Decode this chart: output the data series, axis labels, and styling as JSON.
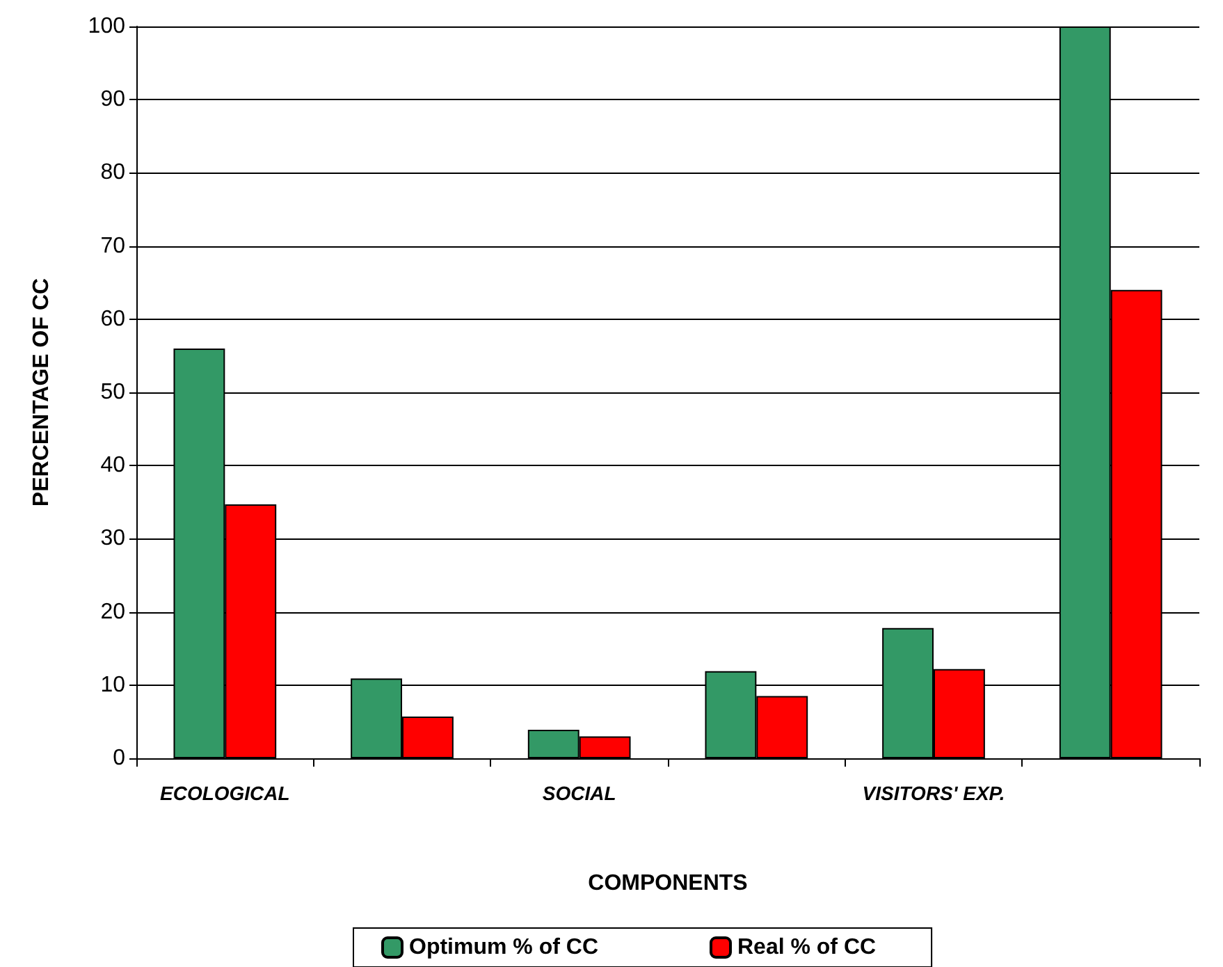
{
  "chart_data": {
    "type": "bar",
    "xlabel": "COMPONENTS",
    "ylabel": "PERCENTAGE OF CC",
    "categories": [
      "ECOLOGICAL",
      null,
      "SOCIAL",
      null,
      "VISITORS' EXP.",
      null
    ],
    "series": [
      {
        "name": "Optimum % of CC",
        "color": "#339966",
        "values": [
          56,
          10.9,
          3.9,
          11.9,
          17.8,
          100
        ]
      },
      {
        "name": "Real % of CC",
        "color": "#ff0000",
        "values": [
          34.7,
          5.7,
          3.0,
          8.5,
          12.2,
          64.0
        ]
      }
    ],
    "ylim": [
      0,
      100
    ],
    "yticks": [
      0,
      10,
      20,
      30,
      40,
      50,
      60,
      70,
      80,
      90,
      100
    ],
    "grid": "y",
    "legend": "bottom"
  }
}
